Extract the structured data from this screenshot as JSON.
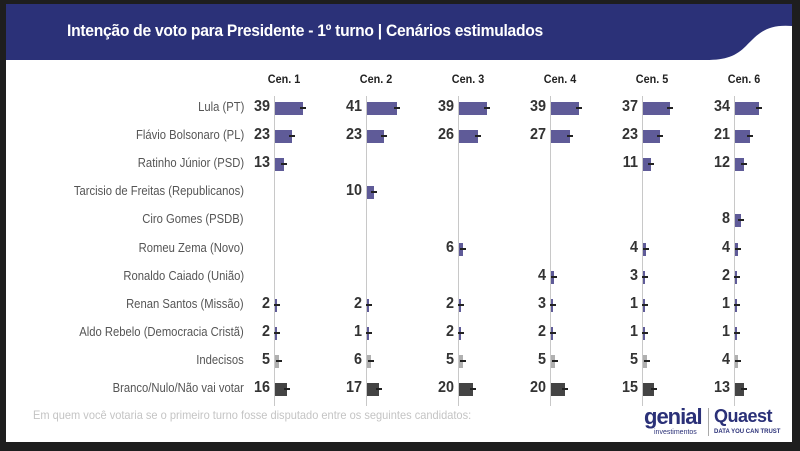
{
  "header": {
    "title": "Intenção de voto para Presidente - 1º turno | Cenários estimulados"
  },
  "footnote": "Em quem você votaria se o primeiro turno fosse disputado entre os seguintes candidatos:",
  "logos": {
    "genial": "genial",
    "genial_sub": "investimentos",
    "quaest": "Quaest",
    "quaest_sub": "DATA YOU CAN TRUST"
  },
  "colors": {
    "header": "#2b3178",
    "candidate": "#5f5b98",
    "undecided": "#b0b0b0",
    "blank": "#444444"
  },
  "chart_data": {
    "type": "bar",
    "title": "Intenção de voto para Presidente - 1º turno | Cenários estimulados",
    "categories": [
      "Lula (PT)",
      "Flávio Bolsonaro (PL)",
      "Ratinho Júnior (PSD)",
      "Tarcisio de Freitas (Republicanos)",
      "Ciro Gomes (PSDB)",
      "Romeu Zema (Novo)",
      "Ronaldo Caiado (União)",
      "Renan Santos (Missão)",
      "Aldo Rebelo (Democracia Cristã)",
      "Indecisos",
      "Branco/Nulo/Não vai votar"
    ],
    "series": [
      {
        "name": "Cen. 1",
        "values": [
          39,
          23,
          13,
          null,
          null,
          null,
          null,
          2,
          2,
          5,
          16
        ]
      },
      {
        "name": "Cen. 2",
        "values": [
          41,
          23,
          null,
          10,
          null,
          null,
          null,
          2,
          1,
          6,
          17
        ]
      },
      {
        "name": "Cen. 3",
        "values": [
          39,
          26,
          null,
          null,
          null,
          6,
          null,
          2,
          2,
          5,
          20
        ]
      },
      {
        "name": "Cen. 4",
        "values": [
          39,
          27,
          null,
          null,
          null,
          null,
          4,
          3,
          2,
          5,
          20
        ]
      },
      {
        "name": "Cen. 5",
        "values": [
          37,
          23,
          11,
          null,
          null,
          4,
          3,
          1,
          1,
          5,
          15
        ]
      },
      {
        "name": "Cen. 6",
        "values": [
          34,
          21,
          12,
          null,
          8,
          4,
          2,
          1,
          1,
          4,
          13
        ]
      }
    ]
  }
}
